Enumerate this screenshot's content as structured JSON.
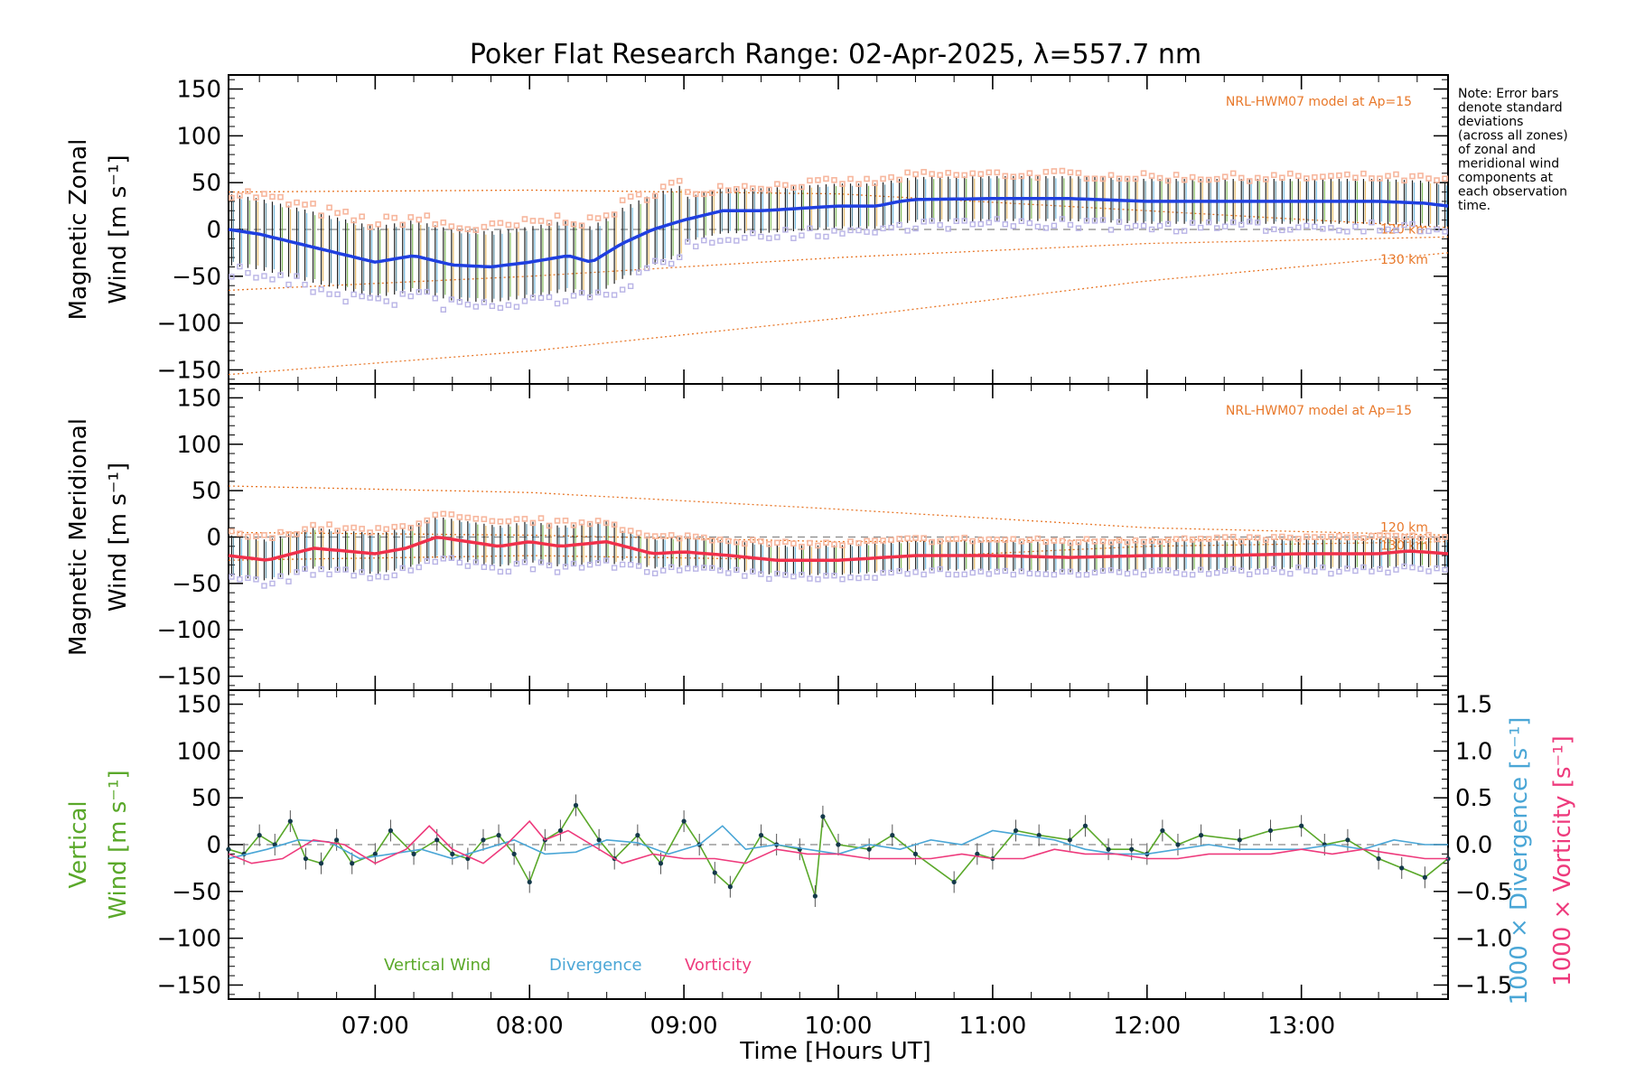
{
  "title": "Poker Flat Research Range: 02-Apr-2025, λ=557.7 nm",
  "note_lines": [
    "Note: Error bars",
    "denote standard",
    "deviations",
    "(across all zones)",
    "of zonal and",
    "meridional wind",
    "components at",
    "each observation",
    "time."
  ],
  "model_label": "NRL-HWM07 model at Ap=15",
  "altitude_labels": [
    "120 km",
    "130 km"
  ],
  "colors": {
    "zonal": "#1f3fe0",
    "meridional": "#f0304a",
    "vertical": "#5aa82a",
    "divergence": "#4aa6d6",
    "vorticity": "#ee3a7c",
    "model": "#e8782a",
    "zone_upper": "#f7b79e",
    "zone_lower": "#b9b4e6"
  },
  "chart_data": [
    {
      "type": "line",
      "panel": "zonal",
      "ylabel_lines": [
        "Magnetic Zonal",
        "Wind [m s⁻¹]"
      ],
      "ylim": [
        -165,
        165
      ],
      "yticks": [
        "150",
        "100",
        "50",
        "0",
        "−50",
        "−100",
        "−150"
      ],
      "xlim": [
        6.05,
        13.95
      ],
      "x": [
        6.05,
        6.25,
        6.5,
        6.75,
        7.0,
        7.25,
        7.5,
        7.75,
        8.0,
        8.25,
        8.4,
        8.6,
        8.8,
        9.0,
        9.25,
        9.5,
        10.0,
        10.25,
        10.4,
        10.5,
        11.0,
        11.5,
        12.0,
        12.5,
        13.0,
        13.5,
        13.8,
        13.95
      ],
      "values": [
        0,
        -5,
        -15,
        -25,
        -35,
        -28,
        -38,
        -40,
        -35,
        -28,
        -35,
        -15,
        0,
        10,
        20,
        20,
        25,
        25,
        30,
        32,
        33,
        33,
        30,
        30,
        30,
        30,
        28,
        25
      ],
      "series_name": "zonal wind",
      "model_curves": [
        {
          "label": "120 km",
          "x": [
            6.05,
            8.0,
            10.0,
            12.0,
            13.95
          ],
          "values": [
            -65,
            -50,
            -30,
            -15,
            -8
          ]
        },
        {
          "label": "130 km",
          "x": [
            6.05,
            8.0,
            10.0,
            12.0,
            13.95
          ],
          "values": [
            -155,
            -130,
            -95,
            -55,
            -25
          ]
        },
        {
          "label": "",
          "x": [
            6.05,
            8.0,
            10.0,
            12.0,
            13.95
          ],
          "values": [
            40,
            42,
            38,
            20,
            2
          ]
        }
      ]
    },
    {
      "type": "line",
      "panel": "meridional",
      "ylabel_lines": [
        "Magnetic Meridional",
        "Wind [m s⁻¹]"
      ],
      "ylim": [
        -165,
        165
      ],
      "yticks": [
        "150",
        "100",
        "50",
        "0",
        "−50",
        "−100",
        "−150"
      ],
      "xlim": [
        6.05,
        13.95
      ],
      "x": [
        6.05,
        6.3,
        6.6,
        6.8,
        7.0,
        7.2,
        7.4,
        7.6,
        7.8,
        8.0,
        8.2,
        8.5,
        8.8,
        9.0,
        9.3,
        9.6,
        10.0,
        10.5,
        11.0,
        11.5,
        12.0,
        12.5,
        13.0,
        13.5,
        13.7,
        13.95
      ],
      "values": [
        -20,
        -25,
        -12,
        -15,
        -18,
        -12,
        0,
        -5,
        -10,
        -5,
        -10,
        -5,
        -18,
        -16,
        -20,
        -25,
        -25,
        -20,
        -20,
        -22,
        -20,
        -20,
        -18,
        -18,
        -15,
        -18
      ],
      "series_name": "meridional wind",
      "model_curves": [
        {
          "label": "120 km",
          "x": [
            6.05,
            8.0,
            10.0,
            12.0,
            13.95
          ],
          "values": [
            55,
            48,
            30,
            10,
            2
          ]
        },
        {
          "label": "130 km",
          "x": [
            6.05,
            8.0,
            10.0,
            12.0,
            13.95
          ],
          "values": [
            5,
            2,
            -5,
            -3,
            -2
          ]
        },
        {
          "label": "",
          "x": [
            6.05,
            8.0,
            10.0,
            12.0,
            13.95
          ],
          "values": [
            -25,
            -20,
            -25,
            -10,
            -5
          ]
        }
      ]
    },
    {
      "type": "line",
      "panel": "vertical",
      "ylabel_lines": [
        "Vertical",
        "Wind [m s⁻¹]"
      ],
      "ylim": [
        -165,
        165
      ],
      "yticks": [
        "150",
        "100",
        "50",
        "0",
        "−50",
        "−100",
        "−150"
      ],
      "xlim": [
        6.05,
        13.95
      ],
      "xticks": [
        "07:00",
        "08:00",
        "09:00",
        "10:00",
        "11:00",
        "12:00",
        "13:00"
      ],
      "xtick_values": [
        7,
        8,
        9,
        10,
        11,
        12,
        13
      ],
      "xlabel": "Time [Hours UT]",
      "right_ylim": [
        -1.65,
        1.65
      ],
      "right_yticks": [
        "1.5",
        "1.0",
        "0.5",
        "0.0",
        "−0.5",
        "−1.0",
        "−1.5"
      ],
      "right_ylabels": [
        "1000 × Divergence [s⁻¹]",
        "1000 × Vorticity [s⁻¹]"
      ],
      "legend": [
        "Vertical Wind",
        "Divergence",
        "Vorticity"
      ],
      "series": [
        {
          "name": "Vertical Wind",
          "axis": "left",
          "x": [
            6.05,
            6.15,
            6.25,
            6.35,
            6.45,
            6.55,
            6.65,
            6.75,
            6.85,
            7.0,
            7.1,
            7.25,
            7.4,
            7.5,
            7.6,
            7.7,
            7.8,
            7.9,
            8.0,
            8.1,
            8.2,
            8.3,
            8.45,
            8.55,
            8.7,
            8.85,
            9.0,
            9.1,
            9.2,
            9.3,
            9.5,
            9.6,
            9.75,
            9.85,
            9.9,
            10.0,
            10.2,
            10.35,
            10.5,
            10.75,
            10.9,
            11.0,
            11.15,
            11.3,
            11.5,
            11.6,
            11.75,
            11.9,
            12.0,
            12.1,
            12.2,
            12.35,
            12.6,
            12.8,
            13.0,
            13.15,
            13.3,
            13.5,
            13.65,
            13.8,
            13.95
          ],
          "values": [
            -5,
            -10,
            10,
            0,
            25,
            -15,
            -20,
            5,
            -20,
            -10,
            15,
            -10,
            5,
            -10,
            -15,
            5,
            10,
            -10,
            -40,
            5,
            15,
            42,
            5,
            -15,
            10,
            -20,
            25,
            0,
            -30,
            -45,
            10,
            0,
            -5,
            -55,
            30,
            0,
            -5,
            10,
            -10,
            -40,
            -10,
            -15,
            15,
            10,
            5,
            20,
            -5,
            -5,
            -10,
            15,
            0,
            10,
            5,
            15,
            20,
            0,
            5,
            -15,
            -25,
            -35,
            -15
          ]
        },
        {
          "name": "Divergence",
          "axis": "right",
          "x": [
            6.05,
            6.3,
            6.5,
            6.7,
            6.9,
            7.1,
            7.3,
            7.5,
            7.7,
            7.9,
            8.1,
            8.3,
            8.5,
            8.7,
            8.9,
            9.1,
            9.25,
            9.4,
            9.6,
            9.8,
            10.0,
            10.2,
            10.4,
            10.6,
            10.8,
            11.0,
            11.2,
            11.4,
            11.6,
            11.8,
            12.0,
            12.2,
            12.4,
            12.6,
            12.8,
            13.0,
            13.2,
            13.4,
            13.6,
            13.8,
            13.95
          ],
          "values": [
            -0.15,
            -0.05,
            0.05,
            0.03,
            -0.15,
            -0.1,
            -0.05,
            -0.15,
            -0.05,
            0.05,
            -0.1,
            -0.08,
            0.05,
            0.02,
            -0.1,
            0.0,
            0.2,
            -0.05,
            0.0,
            -0.05,
            -0.1,
            0.0,
            -0.05,
            0.05,
            0.0,
            0.15,
            0.1,
            0.05,
            -0.05,
            -0.1,
            -0.1,
            -0.05,
            0.0,
            -0.05,
            -0.05,
            -0.05,
            0.0,
            -0.05,
            0.05,
            0.0,
            0.0
          ]
        },
        {
          "name": "Vorticity",
          "axis": "right",
          "x": [
            6.05,
            6.2,
            6.4,
            6.6,
            6.8,
            7.0,
            7.2,
            7.35,
            7.5,
            7.7,
            7.85,
            8.0,
            8.1,
            8.25,
            8.4,
            8.6,
            8.8,
            9.0,
            9.2,
            9.4,
            9.6,
            9.8,
            10.0,
            10.2,
            10.4,
            10.6,
            10.8,
            11.0,
            11.2,
            11.4,
            11.6,
            11.8,
            12.0,
            12.2,
            12.4,
            12.6,
            12.8,
            13.0,
            13.2,
            13.4,
            13.6,
            13.8,
            13.95
          ],
          "values": [
            -0.1,
            -0.2,
            -0.15,
            0.05,
            0.0,
            -0.2,
            -0.05,
            0.2,
            -0.05,
            -0.2,
            0.0,
            0.25,
            0.05,
            0.15,
            0.0,
            -0.2,
            -0.1,
            -0.15,
            -0.15,
            -0.2,
            -0.05,
            -0.1,
            -0.1,
            -0.15,
            -0.15,
            -0.15,
            -0.1,
            -0.15,
            -0.15,
            -0.05,
            -0.1,
            -0.1,
            -0.15,
            -0.15,
            -0.1,
            -0.1,
            -0.1,
            -0.05,
            -0.1,
            -0.05,
            -0.1,
            -0.15,
            -0.15
          ]
        }
      ]
    }
  ]
}
